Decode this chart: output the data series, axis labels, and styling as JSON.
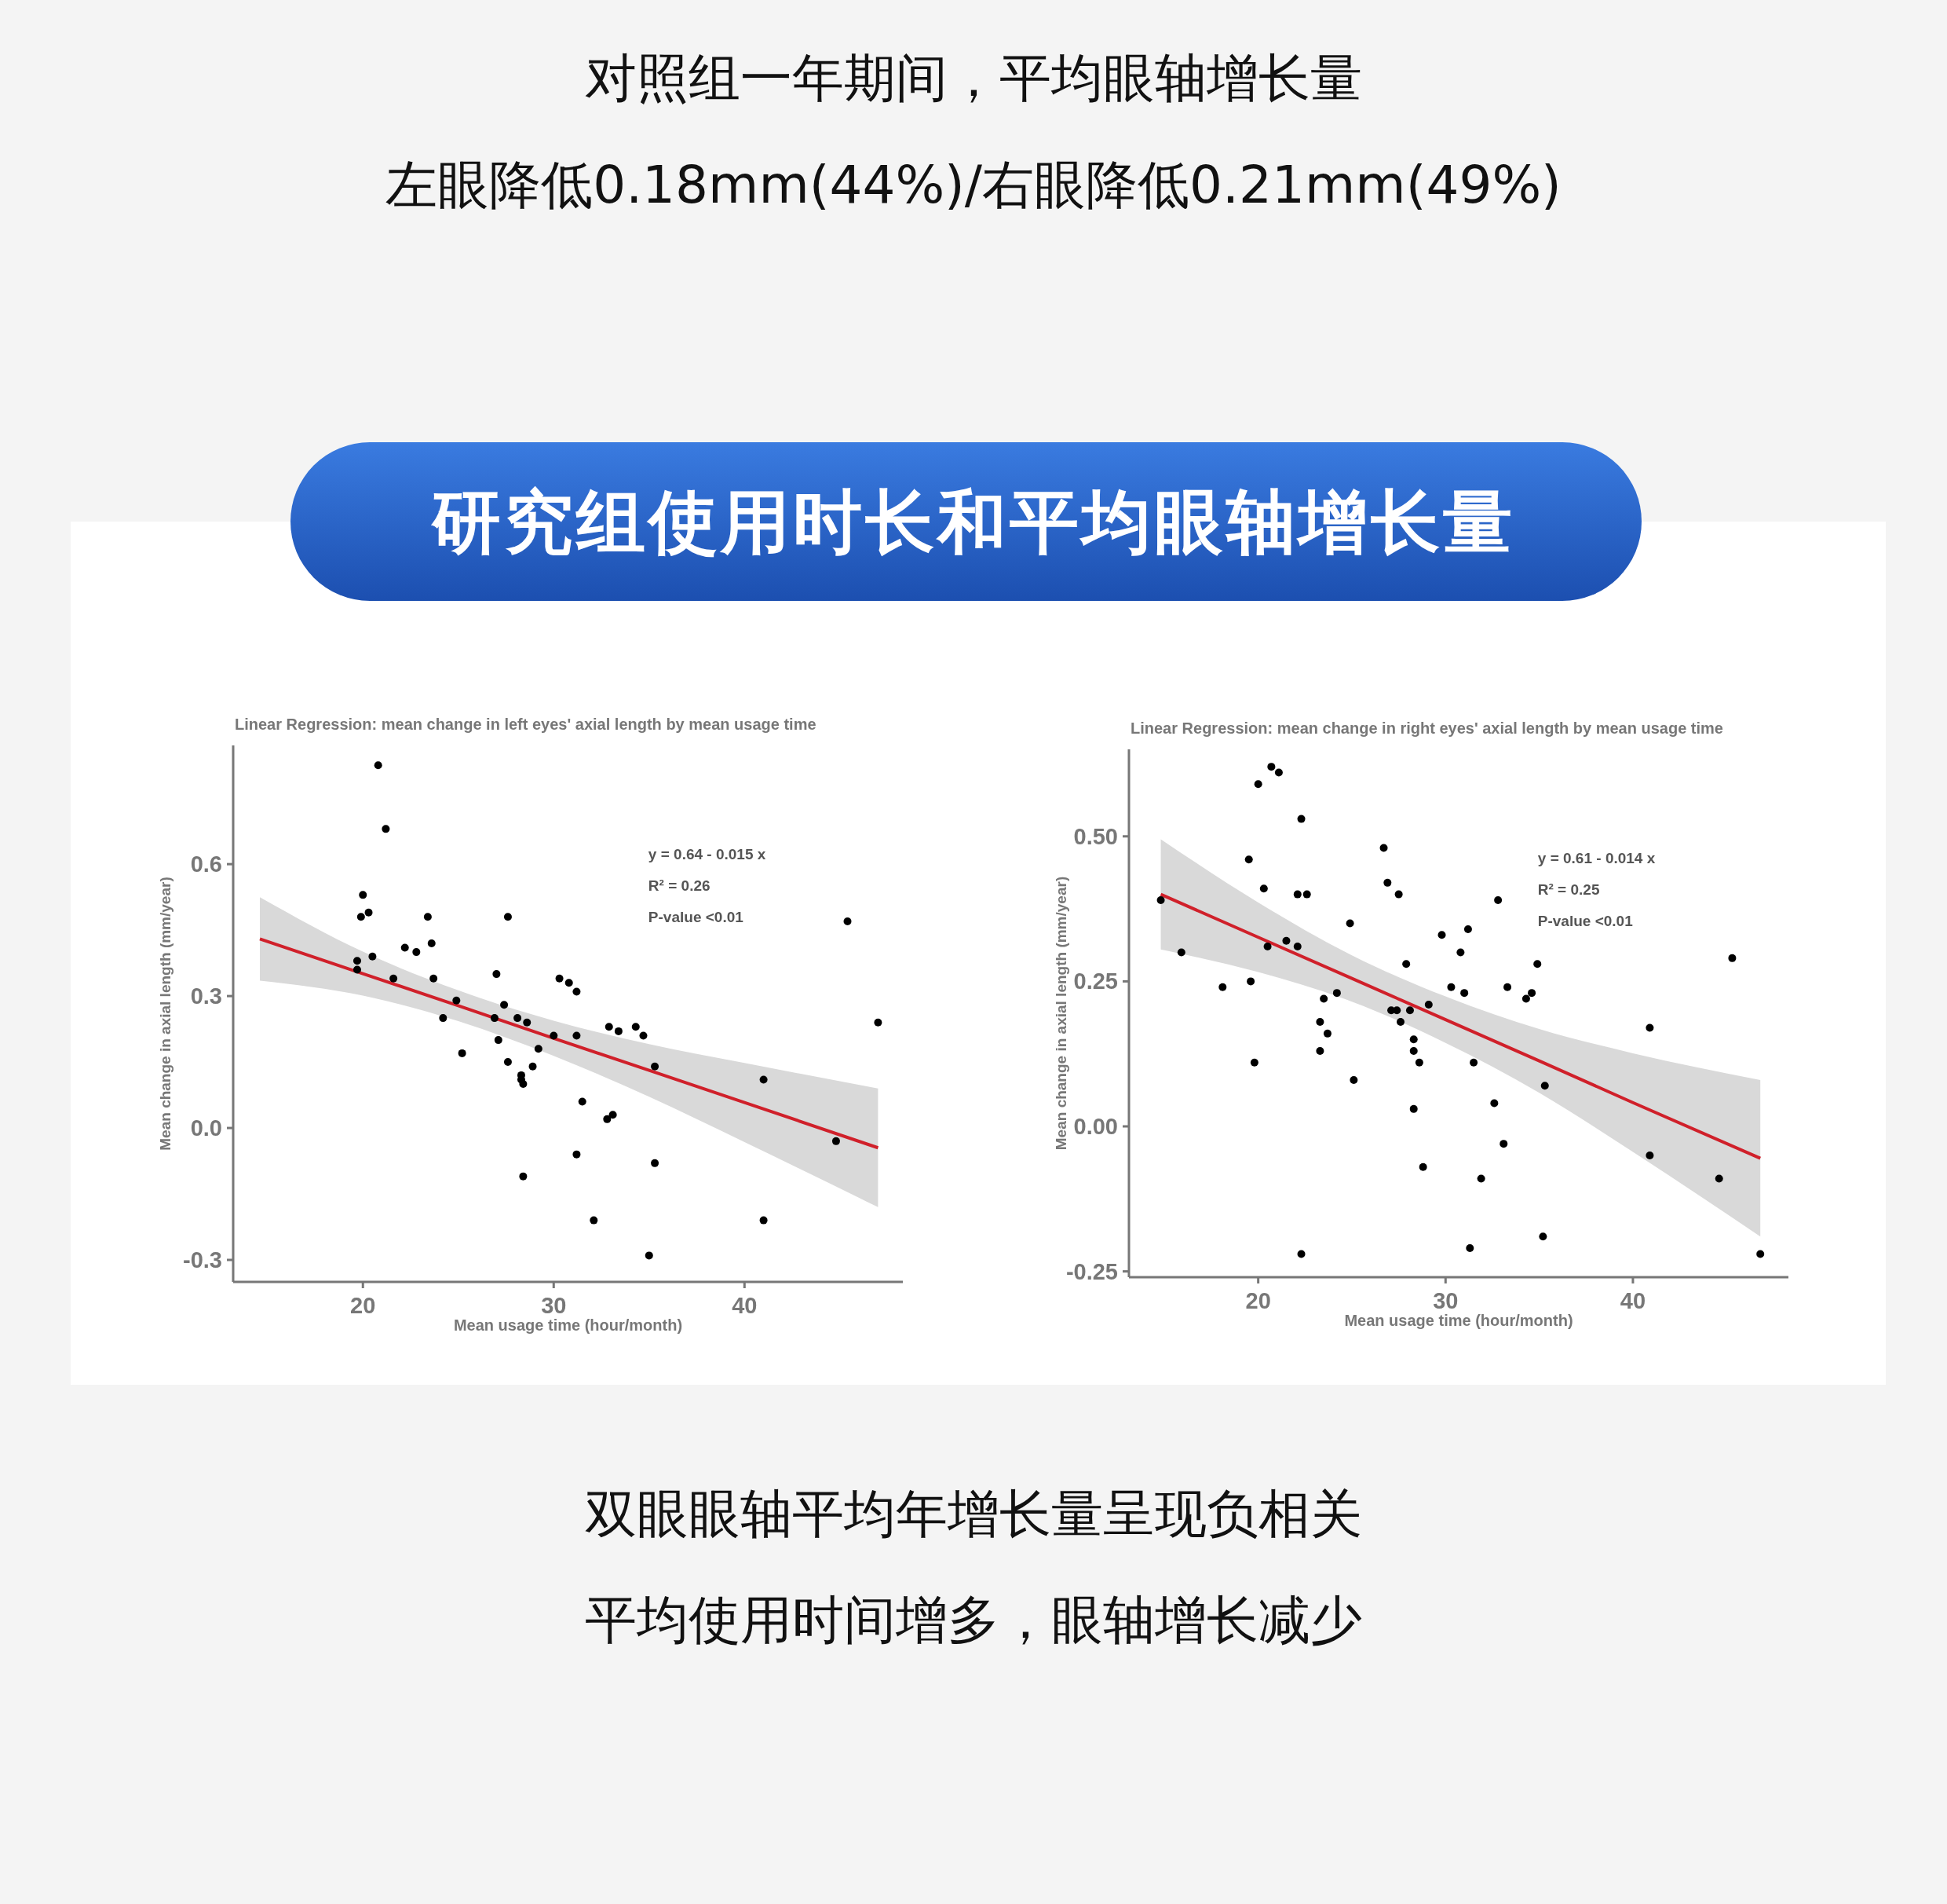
{
  "chart_data": [
    {
      "type": "other",
      "title": "对照组一年期间，平均眼轴增长量",
      "subtitle": "左眼降低0.18mm(44%)/右眼降低0.21mm(49%)",
      "annotations": [
        "研究组使用时长和平均眼轴增长量",
        "双眼眼轴平均年增长量呈现负相关",
        "平均使用时间增多，眼轴增长减少"
      ]
    },
    {
      "type": "scatter",
      "title": "Linear Regression: mean change in left eyes' axial length by mean usage time",
      "xlabel": "Mean usage time (hour/month)",
      "ylabel": "Mean change in axial length (mm/year)",
      "xlim": [
        13.2,
        48.3
      ],
      "xticks": [
        20,
        30,
        40
      ],
      "ylim": [
        -0.35,
        0.87
      ],
      "yticks": [
        {
          "value": -0.3,
          "label": "-0.3"
        },
        {
          "value": 0,
          "label": "0.0"
        },
        0.3,
        0.6
      ],
      "annotations": [
        "y = 0.64 - 0.015 x",
        "R² = 0.26",
        "P-value <0.01"
      ],
      "series": [
        {
          "type": "scatter",
          "marker": "circle",
          "color": "#000000",
          "x": [
            20.8,
            21.2,
            20.0,
            20.3,
            19.9,
            23.4,
            27.6,
            23.6,
            22.2,
            22.8,
            20.5,
            19.7,
            19.7,
            21.6,
            23.7,
            27.0,
            30.3,
            30.8,
            31.2,
            24.9,
            27.4,
            24.2,
            26.9,
            28.1,
            28.6,
            27.1,
            30.0,
            31.2,
            32.9,
            33.4,
            34.3,
            34.7,
            29.2,
            25.2,
            27.6,
            28.9,
            35.3,
            28.3,
            28.3,
            28.4,
            41.0,
            31.5,
            33.1,
            32.8,
            44.8,
            31.2,
            35.3,
            28.4,
            32.1,
            41.0,
            35.0,
            45.4,
            47.0
          ],
          "values": [
            0.825,
            0.68,
            0.53,
            0.49,
            0.48,
            0.48,
            0.48,
            0.42,
            0.41,
            0.4,
            0.39,
            0.38,
            0.36,
            0.34,
            0.34,
            0.35,
            0.34,
            0.33,
            0.31,
            0.29,
            0.28,
            0.25,
            0.25,
            0.25,
            0.24,
            0.2,
            0.21,
            0.21,
            0.23,
            0.22,
            0.23,
            0.21,
            0.18,
            0.17,
            0.15,
            0.14,
            0.14,
            0.12,
            0.11,
            0.1,
            0.11,
            0.06,
            0.03,
            0.02,
            -0.03,
            -0.06,
            -0.08,
            -0.11,
            -0.21,
            -0.21,
            -0.29,
            0.47,
            0.24
          ]
        },
        {
          "type": "line",
          "marker": "none",
          "color": "#d0202a",
          "x": [
            14.6,
            20,
            25,
            30,
            35,
            40,
            47
          ],
          "values": [
            0.43,
            0.351,
            0.278,
            0.204,
            0.131,
            0.058,
            -0.045
          ],
          "lower": [
            0.335,
            0.301,
            0.243,
            0.164,
            0.071,
            -0.032,
            -0.18
          ],
          "upper": [
            0.525,
            0.401,
            0.313,
            0.244,
            0.191,
            0.148,
            0.09
          ]
        }
      ]
    },
    {
      "type": "scatter",
      "title": "Linear Regression: mean change in right eyes' axial length by mean usage time",
      "xlabel": "Mean usage time (hour/month)",
      "ylabel": "Mean change in axial length (mm/year)",
      "xlim": [
        13.1,
        48.3
      ],
      "xticks": [
        20,
        30,
        40
      ],
      "ylim": [
        -0.26,
        0.65
      ],
      "yticks": [
        -0.25,
        {
          "value": 0,
          "label": "0.00"
        },
        0.25,
        {
          "value": 0.5,
          "label": "0.50"
        }
      ],
      "annotations": [
        "y = 0.61 - 0.014 x",
        "R² = 0.25",
        "P-value <0.01"
      ],
      "series": [
        {
          "type": "scatter",
          "marker": "circle",
          "color": "#000000",
          "x": [
            14.8,
            15.9,
            18.1,
            19.5,
            19.6,
            19.8,
            20.0,
            20.3,
            20.5,
            20.7,
            21.1,
            21.5,
            22.1,
            22.3,
            22.1,
            22.6,
            22.3,
            23.3,
            23.3,
            23.5,
            23.7,
            24.2,
            24.9,
            25.1,
            26.7,
            26.9,
            27.1,
            27.4,
            27.5,
            27.6,
            27.9,
            28.1,
            28.3,
            28.3,
            28.6,
            28.3,
            28.8,
            29.1,
            29.8,
            30.3,
            30.8,
            31.0,
            31.2,
            31.5,
            31.3,
            31.9,
            32.6,
            32.8,
            33.1,
            33.3,
            34.3,
            34.6,
            34.9,
            35.3,
            35.2,
            40.9,
            40.9,
            44.6,
            45.3,
            46.8
          ],
          "values": [
            0.39,
            0.3,
            0.24,
            0.46,
            0.25,
            0.11,
            0.59,
            0.41,
            0.31,
            0.62,
            0.61,
            0.32,
            0.31,
            0.53,
            0.4,
            0.4,
            -0.22,
            0.18,
            0.13,
            0.22,
            0.16,
            0.23,
            0.35,
            0.08,
            0.48,
            0.42,
            0.2,
            0.2,
            0.4,
            0.18,
            0.28,
            0.2,
            0.15,
            0.13,
            0.11,
            0.03,
            -0.07,
            0.21,
            0.33,
            0.24,
            0.3,
            0.23,
            0.34,
            0.11,
            -0.21,
            -0.09,
            0.04,
            0.39,
            -0.03,
            0.24,
            0.22,
            0.23,
            0.28,
            0.07,
            -0.19,
            0.17,
            -0.05,
            -0.09,
            0.29,
            -0.22
          ]
        },
        {
          "type": "line",
          "marker": "none",
          "color": "#d0202a",
          "x": [
            14.8,
            20,
            25,
            30,
            35,
            40,
            46.8
          ],
          "values": [
            0.4,
            0.326,
            0.255,
            0.184,
            0.113,
            0.041,
            -0.055
          ],
          "lower": [
            0.305,
            0.266,
            0.215,
            0.144,
            0.058,
            -0.044,
            -0.19
          ],
          "upper": [
            0.495,
            0.386,
            0.295,
            0.224,
            0.168,
            0.126,
            0.08
          ]
        }
      ]
    }
  ]
}
